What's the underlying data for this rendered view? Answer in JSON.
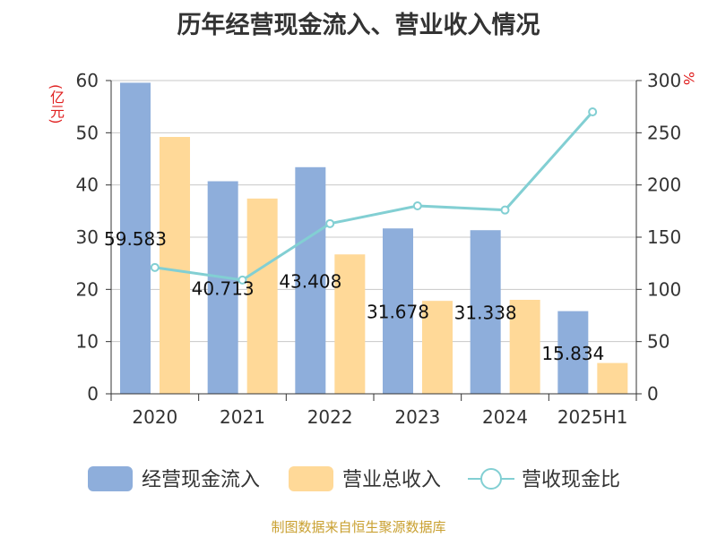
{
  "title": "历年经营现金流入、营业收入情况",
  "left_unit": "(亿元)",
  "right_unit": "%",
  "footer": "制图数据来自恒生聚源数据库",
  "colors": {
    "cash_inflow": "#8eaedb",
    "revenue": "#ffd998",
    "ratio": "#82cfd3"
  },
  "chart_data": {
    "type": "bar",
    "categories": [
      "2020",
      "2021",
      "2022",
      "2023",
      "2024",
      "2025H1"
    ],
    "series": [
      {
        "name": "经营现金流入",
        "type": "bar",
        "axis": "left",
        "values": [
          59.583,
          40.713,
          43.408,
          31.678,
          31.338,
          15.834
        ],
        "labels": [
          "59.583",
          "40.713",
          "43.408",
          "31.678",
          "31.338",
          "15.834"
        ]
      },
      {
        "name": "营业总收入",
        "type": "bar",
        "axis": "left",
        "values": [
          49.2,
          37.4,
          26.7,
          17.8,
          18.0,
          5.9
        ]
      },
      {
        "name": "营收现金比",
        "type": "line",
        "axis": "right",
        "values": [
          121,
          109,
          163,
          180,
          176,
          270
        ]
      }
    ],
    "yleft": {
      "min": 0,
      "max": 60,
      "ticks": [
        0,
        10,
        20,
        30,
        40,
        50,
        60
      ]
    },
    "yright": {
      "min": 0,
      "max": 300,
      "ticks": [
        0,
        50,
        100,
        150,
        200,
        250,
        300
      ]
    },
    "grid": true,
    "legend": "bottom"
  }
}
